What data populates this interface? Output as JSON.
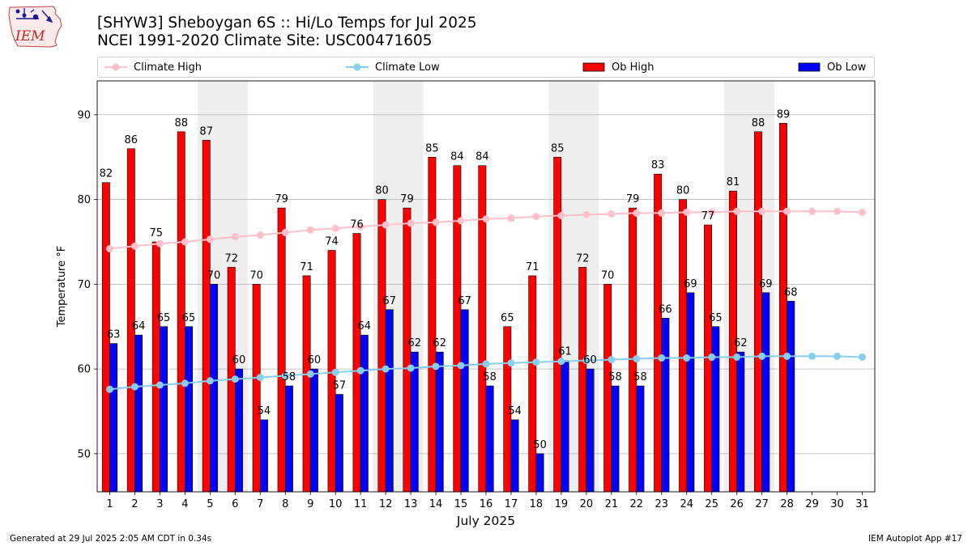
{
  "header": {
    "logo_text": "IEM",
    "title_line1": "[SHYW3] Sheboygan 6S :: Hi/Lo Temps for Jul 2025",
    "title_line2": "NCEI 1991-2020 Climate Site: USC00471605"
  },
  "legend": {
    "items": [
      {
        "label": "Climate High",
        "color": "#ffc0cb",
        "kind": "line"
      },
      {
        "label": "Climate Low",
        "color": "#87ceeb",
        "kind": "line"
      },
      {
        "label": "Ob High",
        "color": "#ff0000",
        "kind": "bar"
      },
      {
        "label": "Ob Low",
        "color": "#0000ff",
        "kind": "bar"
      }
    ]
  },
  "footer": {
    "left": "Generated at 29 Jul 2025 2:05 AM CDT in 0.34s",
    "right": "IEM Autoplot App #17"
  },
  "chart_data": {
    "type": "bar",
    "xlabel": "July 2025",
    "ylabel": "Temperature °F",
    "ylim": [
      45.5,
      94
    ],
    "yticks": [
      50,
      60,
      70,
      80,
      90
    ],
    "grid": true,
    "legend_position": "top",
    "categories": [
      1,
      2,
      3,
      4,
      5,
      6,
      7,
      8,
      9,
      10,
      11,
      12,
      13,
      14,
      15,
      16,
      17,
      18,
      19,
      20,
      21,
      22,
      23,
      24,
      25,
      26,
      27,
      28,
      29,
      30,
      31
    ],
    "weekend_shading": [
      [
        5,
        6
      ],
      [
        12,
        13
      ],
      [
        19,
        20
      ],
      [
        26,
        27
      ]
    ],
    "series": [
      {
        "name": "Ob High",
        "type": "bar",
        "color": "#ff0000",
        "values": [
          82,
          86,
          75,
          88,
          87,
          72,
          70,
          79,
          71,
          74,
          76,
          80,
          79,
          85,
          84,
          84,
          65,
          71,
          85,
          72,
          70,
          79,
          83,
          80,
          77,
          81,
          88,
          89,
          null,
          null,
          null
        ]
      },
      {
        "name": "Ob Low",
        "type": "bar",
        "color": "#0000ff",
        "values": [
          63,
          64,
          65,
          65,
          70,
          60,
          54,
          58,
          60,
          57,
          64,
          67,
          62,
          62,
          67,
          58,
          54,
          50,
          61,
          60,
          58,
          58,
          66,
          69,
          65,
          62,
          69,
          68,
          null,
          null,
          null
        ]
      },
      {
        "name": "Climate High",
        "type": "line",
        "color": "#ffc0cb",
        "values": [
          74.2,
          74.5,
          74.8,
          75.0,
          75.3,
          75.6,
          75.8,
          76.1,
          76.4,
          76.6,
          76.8,
          77.0,
          77.2,
          77.3,
          77.5,
          77.7,
          77.8,
          78.0,
          78.1,
          78.2,
          78.3,
          78.4,
          78.4,
          78.5,
          78.5,
          78.6,
          78.6,
          78.6,
          78.6,
          78.6,
          78.5
        ]
      },
      {
        "name": "Climate Low",
        "type": "line",
        "color": "#87ceeb",
        "values": [
          57.6,
          57.9,
          58.1,
          58.3,
          58.6,
          58.8,
          59.0,
          59.2,
          59.4,
          59.6,
          59.8,
          60.0,
          60.1,
          60.3,
          60.4,
          60.6,
          60.7,
          60.8,
          60.9,
          61.0,
          61.1,
          61.2,
          61.3,
          61.3,
          61.4,
          61.4,
          61.5,
          61.5,
          61.5,
          61.5,
          61.4
        ]
      }
    ]
  }
}
